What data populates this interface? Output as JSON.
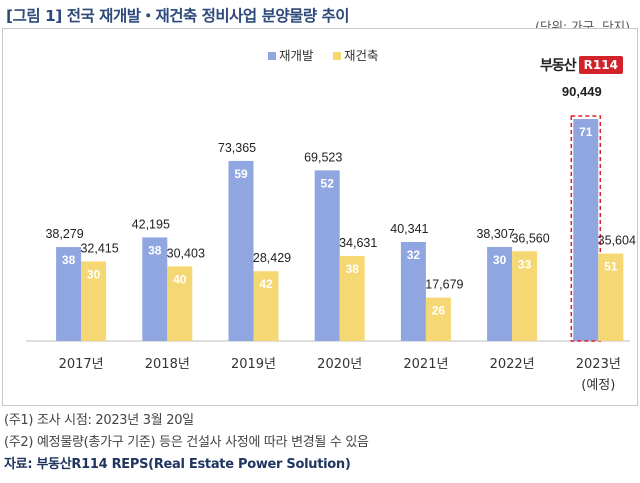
{
  "title": "[그림 1] 전국 재개발・재건축 정비사업 분양물량 추이",
  "unit_label": "(단위: 가구, 단지)",
  "brand": {
    "text": "부동산",
    "box": "R114"
  },
  "notes": [
    "(주1) 조사 시점: 2023년 3월 20일",
    "(주2) 예정물량(총가구 기준) 등은 건설사 사정에 따라 변경될 수 있음"
  ],
  "source": "자료: 부동산R114 REPS(Real Estate Power Solution)",
  "colors": {
    "redevelopment": "#8fa6e0",
    "reconstruction": "#f5d874",
    "highlight": "#e0202a"
  },
  "chart_data": {
    "type": "bar",
    "categories": [
      "2017년",
      "2018년",
      "2019년",
      "2020년",
      "2021년",
      "2022년",
      "2023년"
    ],
    "category_sublabels": [
      "",
      "",
      "",
      "",
      "",
      "",
      "(예정)"
    ],
    "series": [
      {
        "name": "재개발",
        "values": [
          38279,
          42195,
          73365,
          69523,
          40341,
          38307,
          90449
        ],
        "value_labels": [
          "38,279",
          "42,195",
          "73,365",
          "69,523",
          "40,341",
          "38,307",
          "90,449"
        ],
        "counts": [
          38,
          38,
          59,
          52,
          32,
          30,
          71
        ]
      },
      {
        "name": "재건축",
        "values": [
          32415,
          30403,
          28429,
          34631,
          17679,
          36560,
          35604
        ],
        "value_labels": [
          "32,415",
          "30,403",
          "28,429",
          "34,631",
          "17,679",
          "36,560",
          "35,604"
        ],
        "counts": [
          30,
          40,
          42,
          38,
          26,
          33,
          51
        ]
      }
    ],
    "highlight_category": "2023년",
    "ylim": [
      0,
      100000
    ],
    "grid": false,
    "legend": "top-right"
  }
}
